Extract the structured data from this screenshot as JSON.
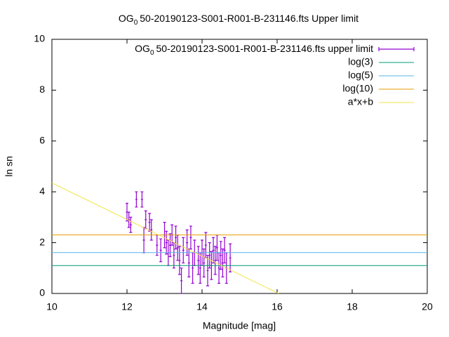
{
  "chart_data": {
    "type": "errorbar",
    "title": [
      "OG",
      "0",
      "50-20190123-S001-R001-B-231146.fts Upper limit"
    ],
    "xlabel": "Magnitude [mag]",
    "ylabel": "ln sn",
    "xlim": [
      10,
      20
    ],
    "ylim": [
      0,
      10
    ],
    "xticks": [
      10,
      12,
      14,
      16,
      18,
      20
    ],
    "yticks": [
      0,
      2,
      4,
      6,
      8,
      10
    ],
    "grid": false,
    "legend": "top-right",
    "series": [
      {
        "name": [
          "OG",
          "0",
          "50-20190123-S001-R001-B-231146.fts upper limit"
        ],
        "color": "#9400d3",
        "style": "errorbars",
        "x": [
          12.0,
          12.05,
          12.1,
          12.25,
          12.4,
          12.45,
          12.5,
          12.6,
          12.65,
          12.8,
          12.9,
          13.0,
          13.05,
          13.1,
          13.15,
          13.2,
          13.25,
          13.3,
          13.35,
          13.4,
          13.45,
          13.5,
          13.6,
          13.65,
          13.7,
          13.75,
          13.8,
          13.9,
          13.95,
          14.0,
          14.05,
          14.1,
          14.15,
          14.2,
          14.25,
          14.3,
          14.35,
          14.4,
          14.45,
          14.5,
          14.55,
          14.6,
          14.65,
          14.75
        ],
        "values": [
          3.2,
          2.9,
          2.7,
          3.7,
          3.7,
          2.1,
          2.9,
          2.8,
          2.5,
          1.9,
          1.7,
          2.3,
          2.0,
          1.6,
          1.9,
          2.3,
          1.5,
          2.2,
          1.8,
          1.3,
          0.5,
          1.7,
          2.0,
          1.2,
          2.2,
          1.0,
          1.6,
          1.3,
          1.0,
          1.6,
          1.2,
          1.9,
          0.9,
          1.5,
          1.1,
          1.7,
          1.3,
          1.8,
          1.0,
          1.5,
          1.2,
          1.7,
          1.0,
          1.4
        ],
        "errors": [
          0.35,
          0.3,
          0.3,
          0.3,
          0.3,
          0.5,
          0.35,
          0.35,
          0.4,
          0.4,
          0.45,
          0.5,
          0.45,
          0.5,
          0.45,
          0.4,
          0.5,
          0.45,
          0.5,
          0.55,
          0.5,
          0.5,
          0.5,
          0.55,
          0.45,
          0.6,
          0.5,
          0.55,
          0.6,
          0.5,
          0.55,
          0.5,
          0.6,
          0.5,
          0.55,
          0.5,
          0.55,
          0.5,
          0.6,
          0.55,
          0.55,
          0.5,
          0.6,
          0.55
        ]
      },
      {
        "name": "log(3)",
        "color": "#009e73",
        "style": "line",
        "x": [
          10,
          20
        ],
        "values": [
          1.0986,
          1.0986
        ]
      },
      {
        "name": "log(5)",
        "color": "#56b4e9",
        "style": "line",
        "x": [
          10,
          20
        ],
        "values": [
          1.6094,
          1.6094
        ]
      },
      {
        "name": "log(10)",
        "color": "#e69f00",
        "style": "line",
        "x": [
          10,
          20
        ],
        "values": [
          2.3026,
          2.3026
        ]
      },
      {
        "name": "a*x+b",
        "color": "#f0e442",
        "style": "line",
        "x": [
          10,
          16.04
        ],
        "values": [
          4.35,
          0
        ]
      }
    ]
  }
}
